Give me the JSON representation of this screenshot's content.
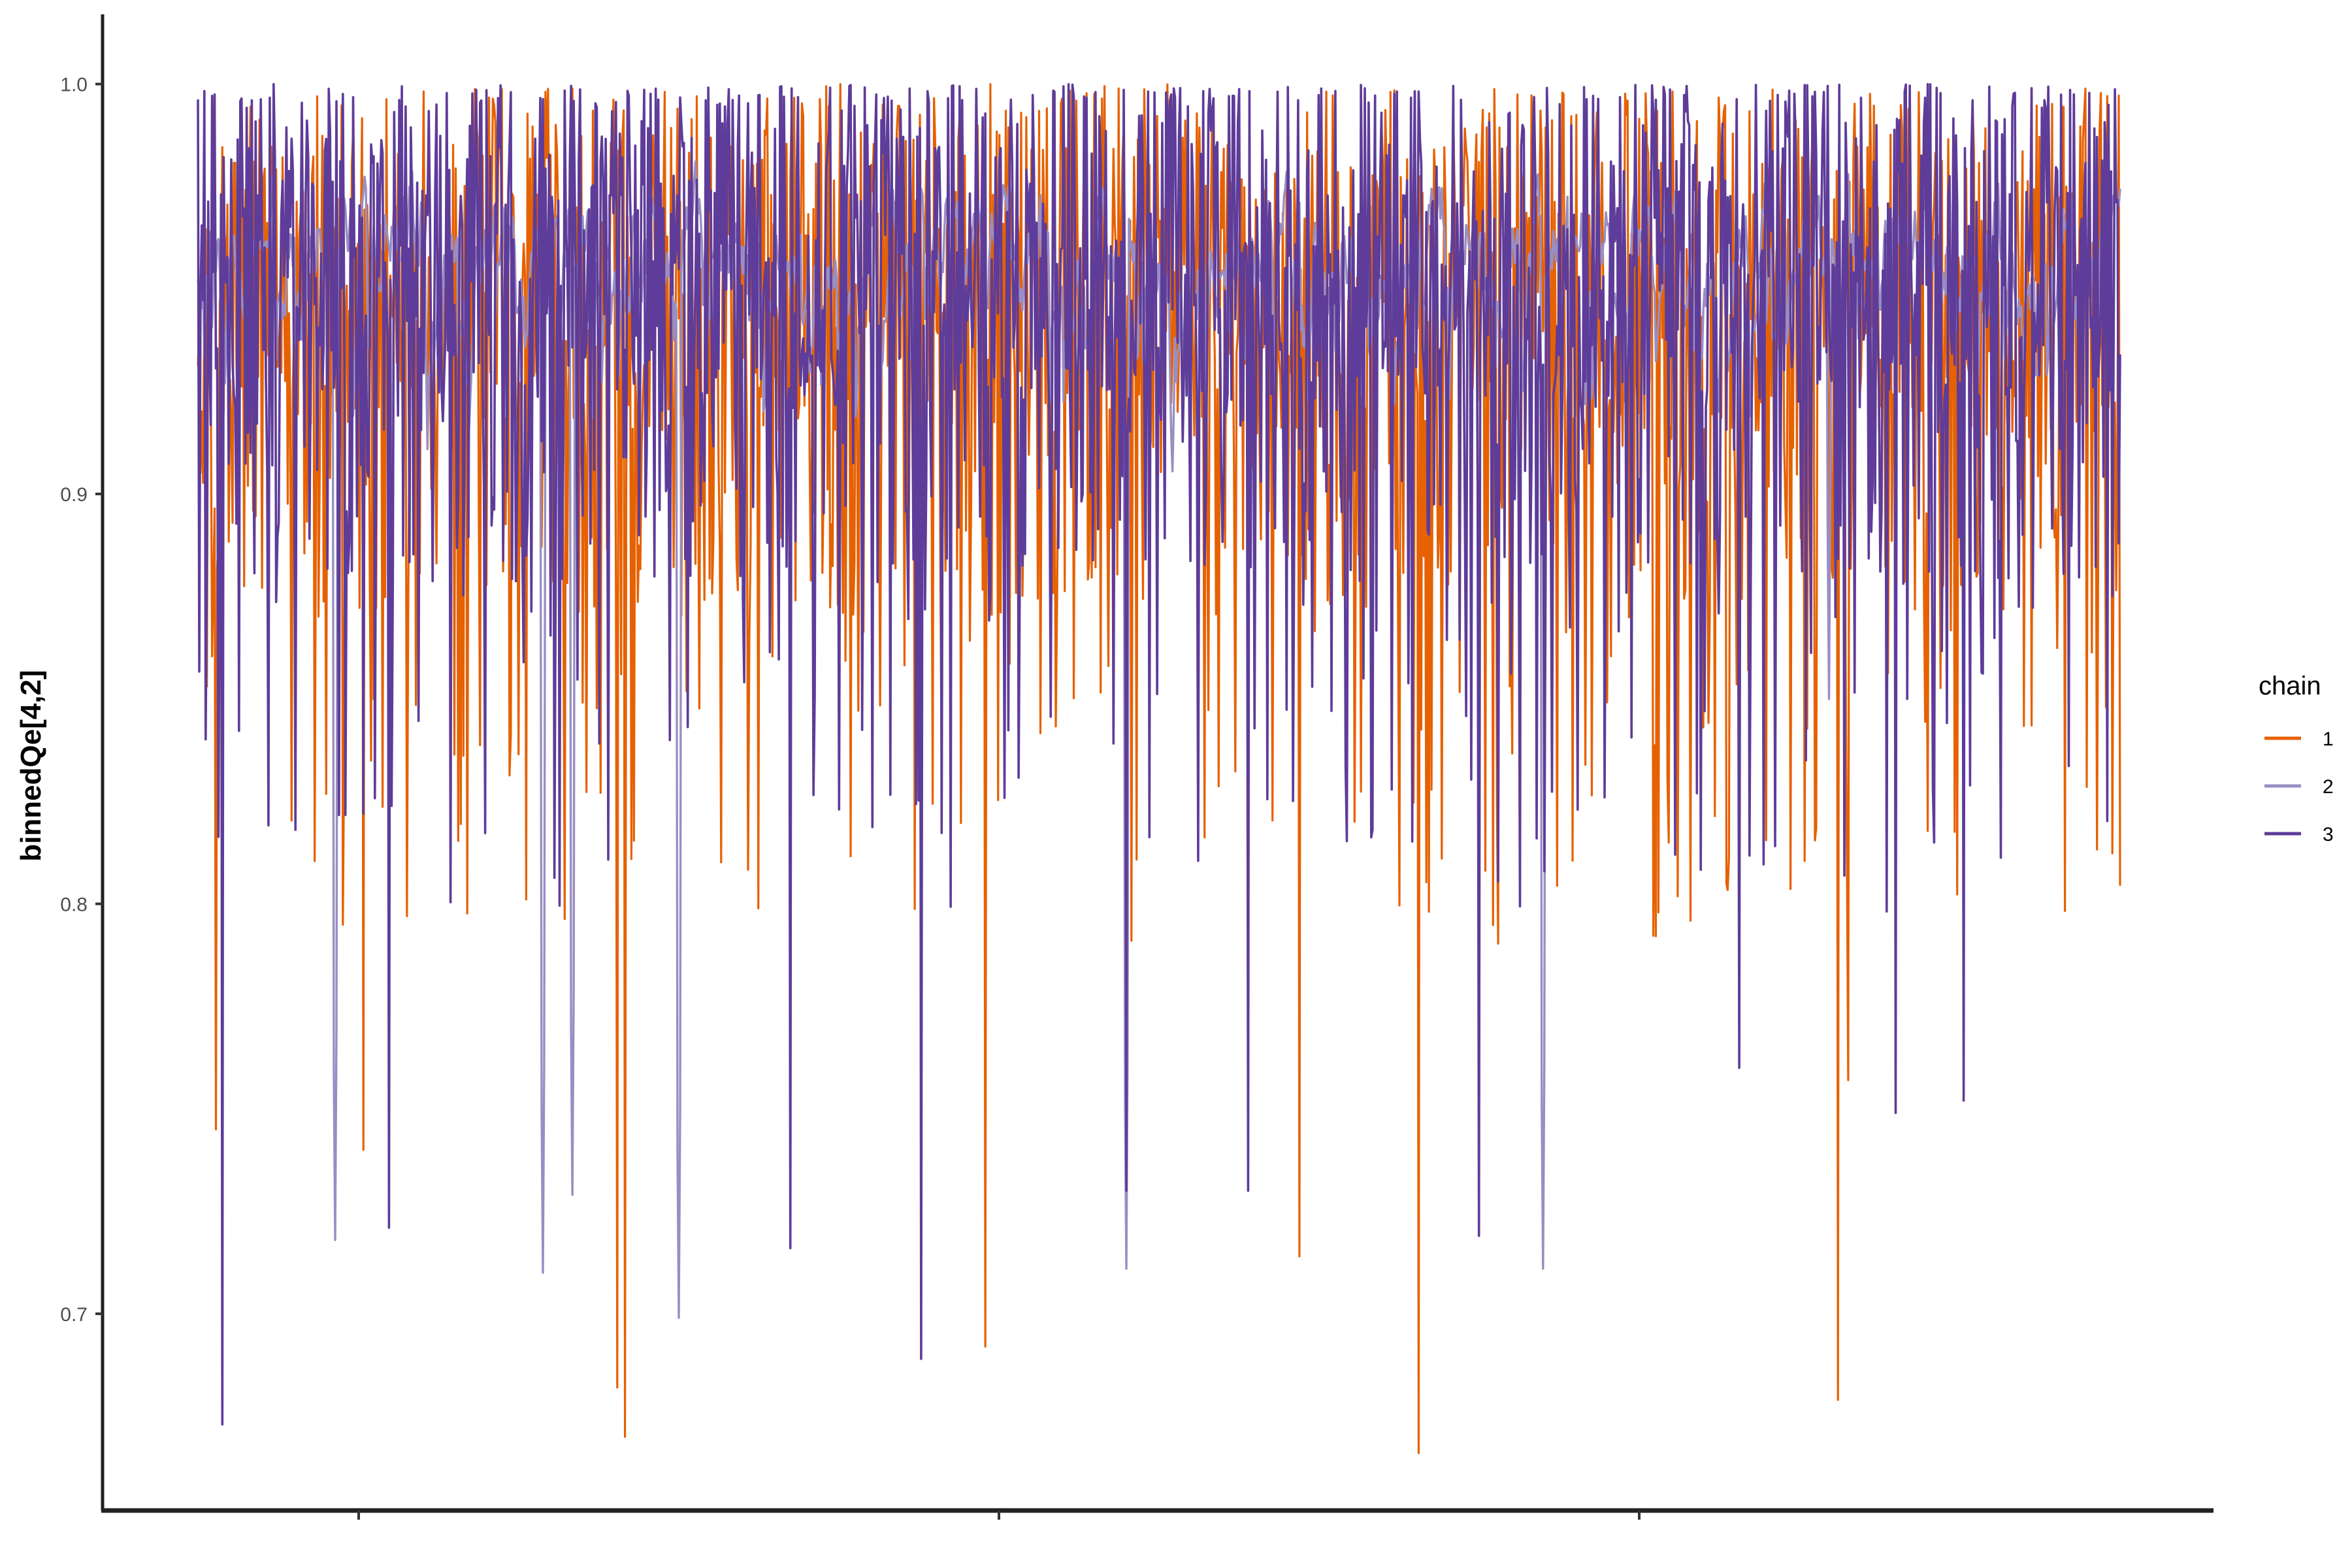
{
  "chart_data": {
    "type": "line",
    "title": "",
    "xlabel": "",
    "ylabel": "binnedQe[4,2]",
    "ylim": [
      0.652,
      1.017
    ],
    "yticks": [
      0.7,
      0.8,
      0.9,
      1.0
    ],
    "ytick_labels": [
      "0.7",
      "0.8",
      "0.9",
      "1.0"
    ],
    "x_range": [
      1,
      3000
    ],
    "x_tick_count": 3,
    "x_tick_labels_visible": false,
    "grid": false,
    "legend": {
      "title": "chain",
      "position": "right"
    },
    "series": [
      {
        "name": "1",
        "color": "#e66101",
        "median": 0.95,
        "min": 0.666,
        "max": 1.0,
        "deep_dips": [
          {
            "x": 30,
            "y": 0.745
          },
          {
            "x": 260,
            "y": 0.74
          },
          {
            "x": 655,
            "y": 0.682
          },
          {
            "x": 668,
            "y": 0.67
          },
          {
            "x": 1230,
            "y": 0.692
          },
          {
            "x": 1720,
            "y": 0.714
          },
          {
            "x": 1905,
            "y": 0.666
          },
          {
            "x": 2560,
            "y": 0.679
          },
          {
            "x": 2575,
            "y": 0.757
          }
        ]
      },
      {
        "name": "2",
        "color": "#998ec3",
        "median": 0.955,
        "min": 0.699,
        "max": 1.0,
        "deep_dips": [
          {
            "x": 215,
            "y": 0.718
          },
          {
            "x": 540,
            "y": 0.71
          },
          {
            "x": 585,
            "y": 0.729
          },
          {
            "x": 752,
            "y": 0.699
          },
          {
            "x": 1450,
            "y": 0.711
          },
          {
            "x": 2100,
            "y": 0.711
          },
          {
            "x": 2545,
            "y": 0.85
          }
        ]
      },
      {
        "name": "3",
        "color": "#5e3c99",
        "median": 0.958,
        "min": 0.673,
        "max": 1.0,
        "deep_dips": [
          {
            "x": 40,
            "y": 0.673
          },
          {
            "x": 300,
            "y": 0.721
          },
          {
            "x": 925,
            "y": 0.716
          },
          {
            "x": 1130,
            "y": 0.689
          },
          {
            "x": 1450,
            "y": 0.73
          },
          {
            "x": 1640,
            "y": 0.73
          },
          {
            "x": 2000,
            "y": 0.719
          },
          {
            "x": 2405,
            "y": 0.76
          },
          {
            "x": 2650,
            "y": 0.749
          },
          {
            "x": 2755,
            "y": 0.752
          }
        ]
      }
    ]
  }
}
